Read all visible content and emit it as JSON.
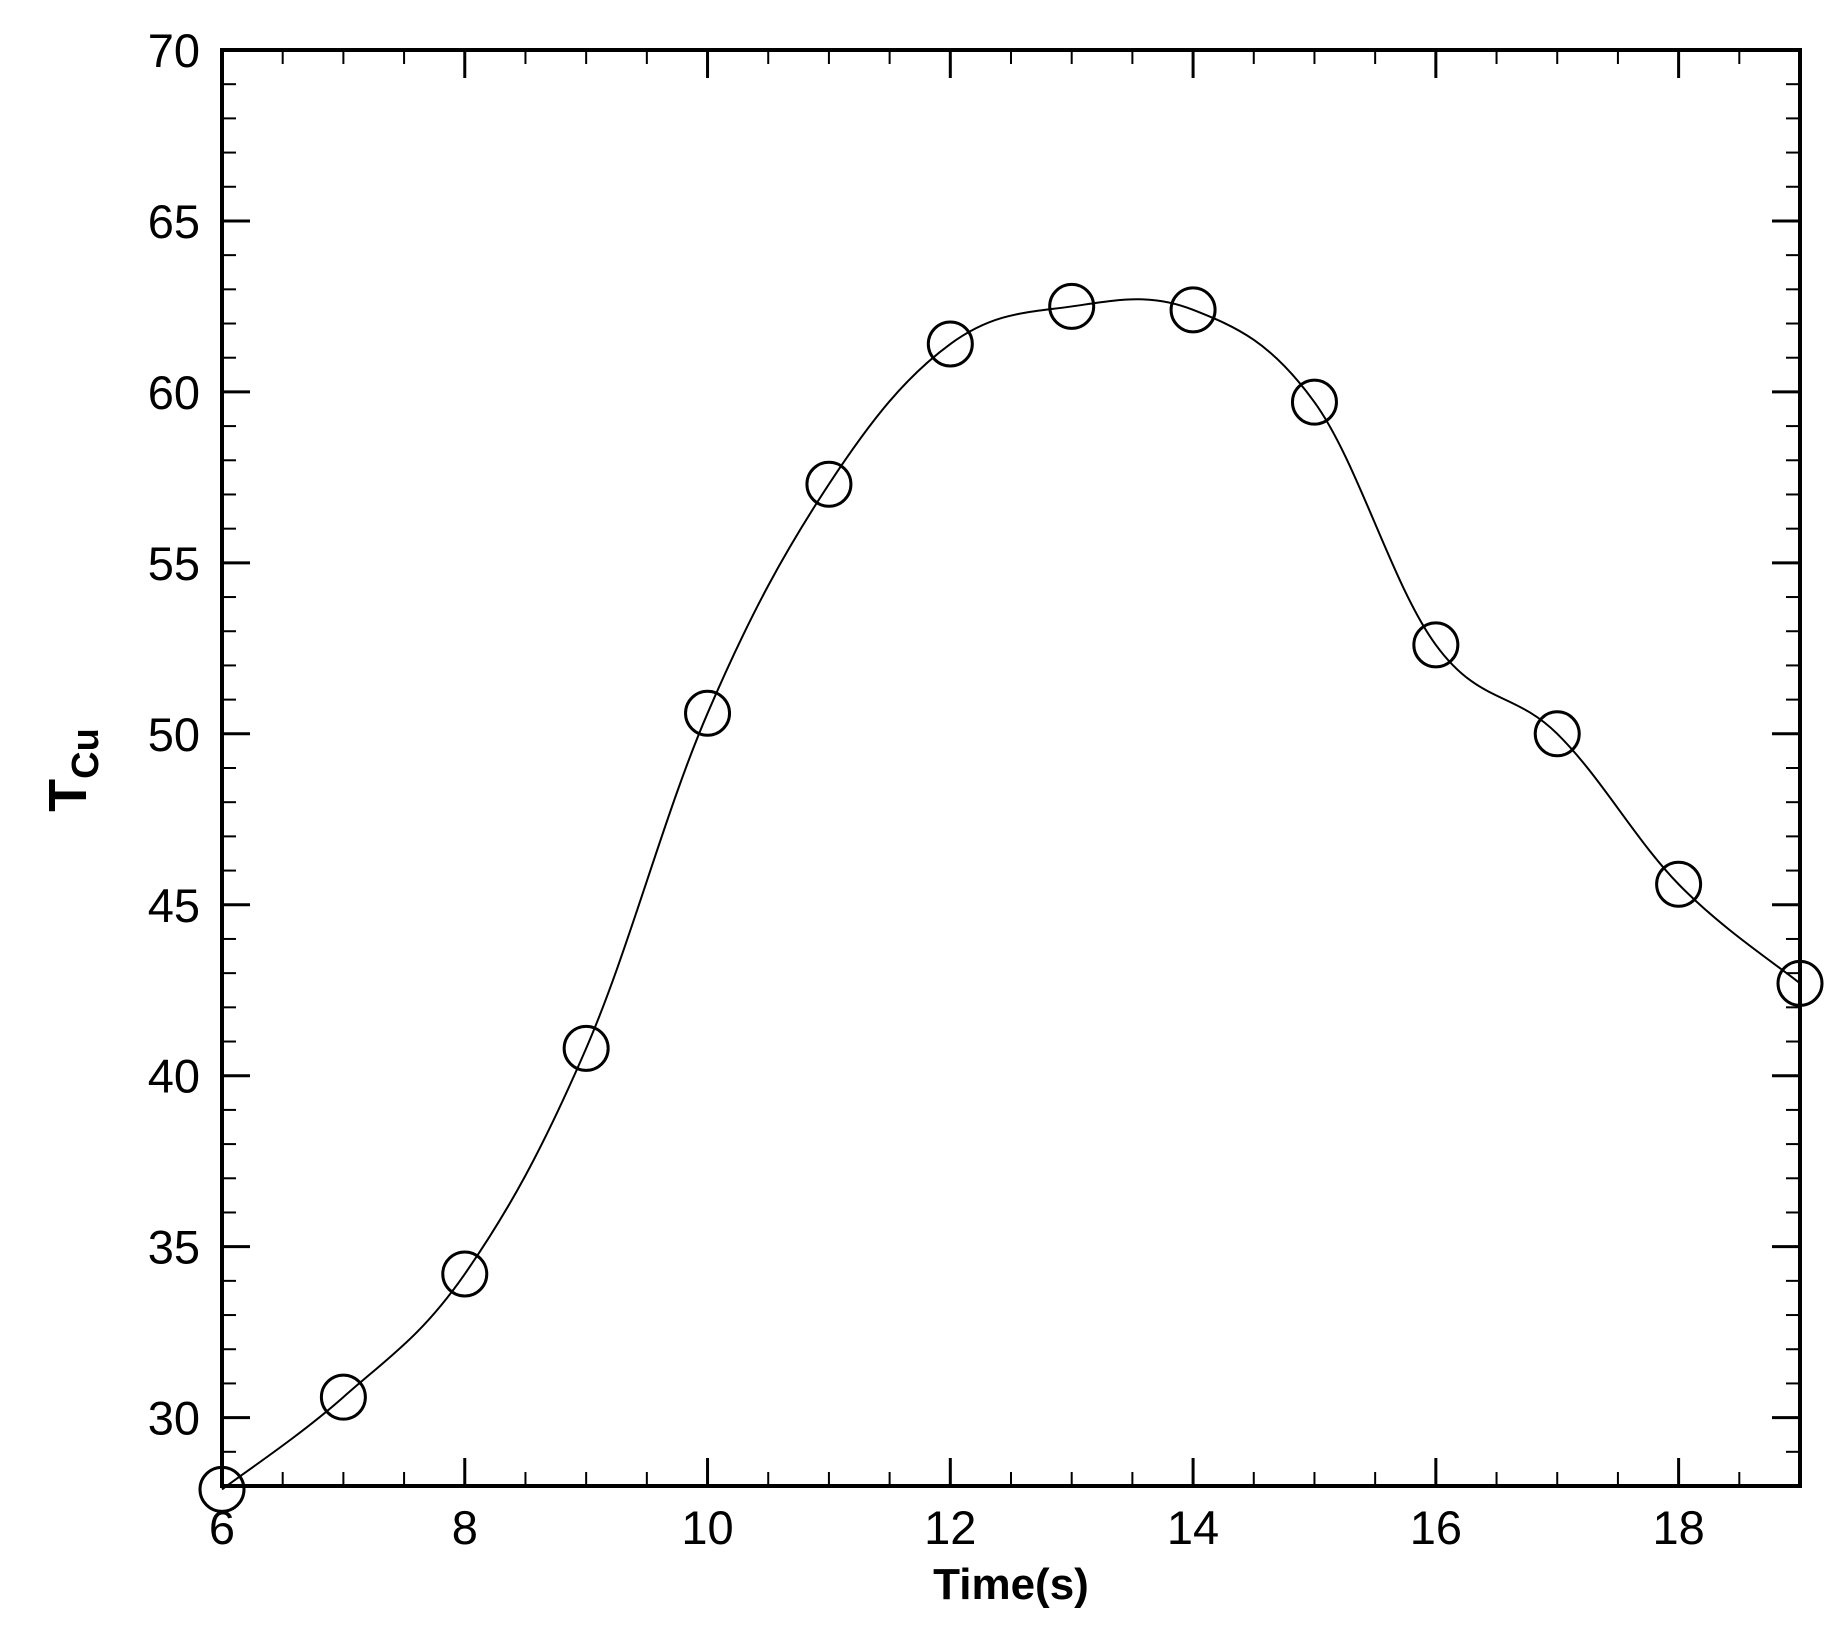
{
  "chart_data": {
    "type": "line",
    "xlabel": "Time(s)",
    "ylabel": {
      "main": "T",
      "subscript": "Cu"
    },
    "xlim": [
      6,
      19
    ],
    "ylim": [
      28,
      70
    ],
    "x_ticks": [
      6,
      8,
      10,
      12,
      14,
      16,
      18
    ],
    "x_tick_labels": [
      "6",
      "8",
      "10",
      "12",
      "14",
      "16",
      "18"
    ],
    "x_minor_step": 0.5,
    "y_ticks": [
      30,
      35,
      40,
      45,
      50,
      55,
      60,
      65,
      70
    ],
    "y_tick_labels": [
      "30",
      "35",
      "40",
      "45",
      "50",
      "55",
      "60",
      "65",
      "70"
    ],
    "y_minor_step": 1,
    "grid": false,
    "legend": "none",
    "series": [
      {
        "marker": "open-circle",
        "line_color": "#000000",
        "x": [
          6,
          7,
          8,
          9,
          10,
          11,
          12,
          13,
          14,
          15,
          16,
          17,
          18,
          19
        ],
        "values": [
          27.9,
          30.6,
          34.2,
          40.8,
          50.6,
          57.3,
          61.4,
          62.5,
          62.4,
          59.7,
          52.6,
          50.0,
          45.6,
          42.7
        ]
      }
    ]
  }
}
